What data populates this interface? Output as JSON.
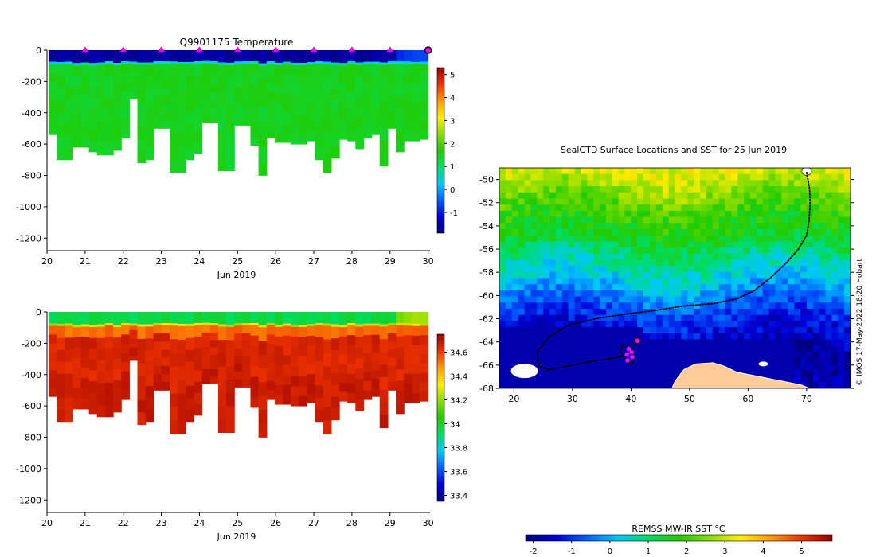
{
  "figure": {
    "credit": "© IMOS 17-May-2022 18:20 Hobart"
  },
  "chart_data": [
    {
      "id": "temperature",
      "type": "heatmap",
      "title": "Q9901175  Temperature",
      "xlabel": "Jun 2019",
      "ylabel": "",
      "x_ticks": [
        20,
        21,
        22,
        23,
        24,
        25,
        26,
        27,
        28,
        29,
        30
      ],
      "y_ticks": [
        0,
        -200,
        -400,
        -600,
        -800,
        -1000,
        -1200
      ],
      "xlim": [
        20,
        30.05
      ],
      "ylim": [
        -1280,
        0
      ],
      "profile_days": [
        21,
        22,
        23,
        24,
        25,
        26,
        27,
        28,
        29
      ],
      "current_profile_day": 30,
      "profile_depths": [
        540,
        700,
        700,
        620,
        620,
        650,
        670,
        670,
        640,
        560,
        310,
        720,
        700,
        500,
        500,
        780,
        780,
        700,
        660,
        460,
        460,
        770,
        770,
        480,
        480,
        610,
        800,
        560,
        590,
        590,
        600,
        600,
        580,
        700,
        780,
        690,
        570,
        580,
        630,
        560,
        540,
        740,
        500,
        650,
        580,
        580,
        570
      ],
      "surface_value": -1.8,
      "mixed_layer_value": 1.4,
      "deep_value": 1.6,
      "colorbar": {
        "range": [
          -1.9,
          5.3
        ],
        "ticks": [
          5,
          4,
          3,
          2,
          1,
          0,
          -1
        ],
        "colors": [
          "#00007f",
          "#0000d8",
          "#0060ff",
          "#00c8ff",
          "#00dd66",
          "#22cc00",
          "#88dd00",
          "#ffee00",
          "#ff9900",
          "#ee3300",
          "#990000"
        ]
      }
    },
    {
      "id": "salinity",
      "type": "heatmap",
      "title": "",
      "xlabel": "Jun 2019",
      "ylabel": "",
      "x_ticks": [
        20,
        21,
        22,
        23,
        24,
        25,
        26,
        27,
        28,
        29,
        30
      ],
      "y_ticks": [
        0,
        -200,
        -400,
        -600,
        -800,
        -1000,
        -1200
      ],
      "xlim": [
        20,
        30.05
      ],
      "ylim": [
        -1280,
        0
      ],
      "surface_value": 33.95,
      "deep_value": 34.68,
      "colorbar": {
        "range": [
          33.35,
          34.75
        ],
        "ticks": [
          34.6,
          34.4,
          34.2,
          34,
          33.8,
          33.6,
          33.4
        ],
        "colors": [
          "#00007f",
          "#0000d8",
          "#0060ff",
          "#00c8ff",
          "#00dd66",
          "#22cc00",
          "#88dd00",
          "#ffee00",
          "#ff9900",
          "#ee3300",
          "#990000"
        ]
      }
    },
    {
      "id": "map",
      "type": "heatmap",
      "title": "SealCTD Surface Locations and SST for 25 Jun 2019",
      "xlabel": "",
      "ylabel": "",
      "x_ticks": [
        20,
        30,
        40,
        50,
        60,
        70
      ],
      "y_ticks": [
        -50,
        -52,
        -54,
        -56,
        -58,
        -60,
        -62,
        -64,
        -66,
        -68
      ],
      "xlim": [
        17.5,
        77.5
      ],
      "ylim": [
        -68,
        -49
      ],
      "track": [
        [
          70.0,
          -49.4
        ],
        [
          70.5,
          -50.8
        ],
        [
          70.6,
          -52.2
        ],
        [
          70.4,
          -53.6
        ],
        [
          70.0,
          -54.8
        ],
        [
          68.6,
          -56.0
        ],
        [
          66.5,
          -57.2
        ],
        [
          64.0,
          -58.4
        ],
        [
          61.0,
          -59.6
        ],
        [
          58.0,
          -60.3
        ],
        [
          54.0,
          -60.7
        ],
        [
          49.0,
          -60.9
        ],
        [
          44.0,
          -61.3
        ],
        [
          39.0,
          -61.6
        ],
        [
          34.0,
          -62.0
        ],
        [
          29.0,
          -62.6
        ],
        [
          26.0,
          -63.6
        ],
        [
          24.0,
          -64.8
        ],
        [
          24.2,
          -66.1
        ],
        [
          26.0,
          -66.4
        ],
        [
          29.0,
          -66.1
        ],
        [
          33.0,
          -65.7
        ],
        [
          37.0,
          -65.4
        ],
        [
          39.0,
          -65.2
        ],
        [
          40.2,
          -64.8
        ],
        [
          39.6,
          -64.3
        ],
        [
          38.6,
          -64.2
        ],
        [
          38.2,
          -64.8
        ],
        [
          38.9,
          -65.4
        ],
        [
          40.0,
          -66.0
        ],
        [
          40.7,
          -65.5
        ],
        [
          40.3,
          -64.6
        ],
        [
          41.0,
          -64.0
        ]
      ],
      "profile_locations": [
        [
          39.6,
          -64.6
        ],
        [
          39.3,
          -65.1
        ],
        [
          40.1,
          -64.9
        ],
        [
          40.2,
          -65.3
        ],
        [
          39.4,
          -65.6
        ],
        [
          41.1,
          -63.9
        ]
      ],
      "sst_range": [
        -2.2,
        5.8
      ],
      "sst_bands": [
        [
          -49.4,
          3.2
        ],
        [
          -51,
          2.6
        ],
        [
          -53,
          1.9
        ],
        [
          -55,
          1.5
        ],
        [
          -57,
          0.8
        ],
        [
          -59,
          0.1
        ],
        [
          -61,
          -0.7
        ],
        [
          -63,
          -1.4
        ],
        [
          -65,
          -1.8
        ],
        [
          -68,
          -1.8
        ]
      ],
      "land": [
        {
          "name": "Antarctica",
          "label": ""
        },
        {
          "name": "sea-ice",
          "label": ""
        }
      ],
      "colorbar": {
        "label": "REMSS MW-IR SST °C",
        "range": [
          -2.2,
          5.8
        ],
        "ticks": [
          -2,
          -1,
          0,
          1,
          2,
          3,
          4,
          5
        ],
        "colors": [
          "#00007f",
          "#0000d8",
          "#0060ff",
          "#00c8ff",
          "#00dd66",
          "#22cc00",
          "#88dd00",
          "#ffee00",
          "#ff9900",
          "#ee3300",
          "#990000"
        ]
      }
    }
  ]
}
